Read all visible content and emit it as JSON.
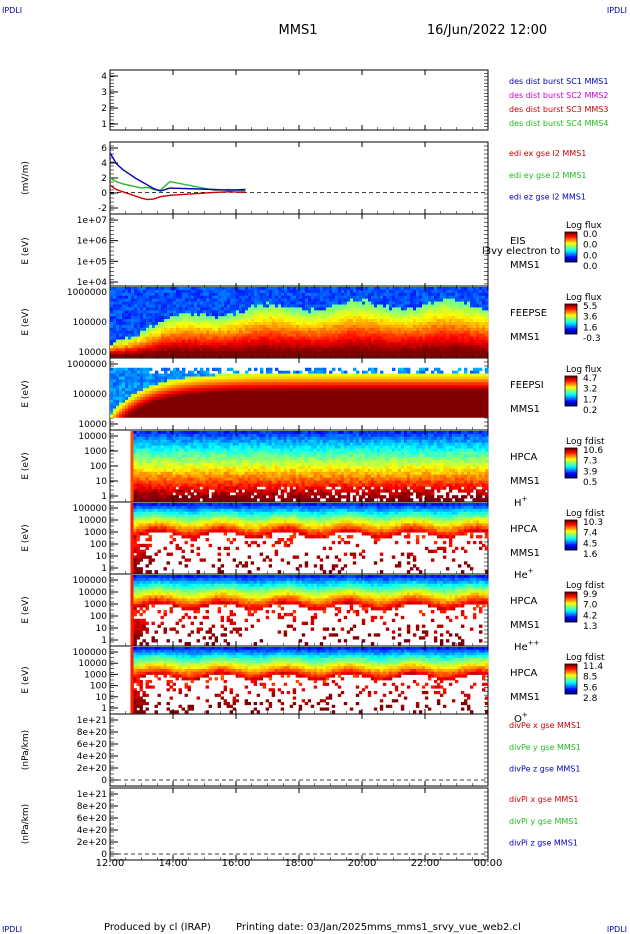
{
  "corner_tag": "IPDLI",
  "header": {
    "mission": "MMS1",
    "datetime": "16/Jun/2022 12:00"
  },
  "footer": {
    "produced_by": "Produced by cl (IRAP)",
    "printing_date": "Printing date: 03/Jan/2025",
    "filename": "mms_mms1_srvy_vue_web2.cl"
  },
  "colors": {
    "red": "#cc0000",
    "green": "#22bb22",
    "blue": "#0000bb",
    "magenta": "#cc00cc"
  },
  "time_axis": {
    "ticks": [
      "12:00",
      "14:00",
      "16:00",
      "18:00",
      "20:00",
      "22:00",
      "00:00"
    ],
    "range_hours": [
      12,
      24
    ]
  },
  "chart_data": [
    {
      "type": "line",
      "panel": "des-dist-burst",
      "ylabel": "",
      "y_ticks": [
        "4",
        "3",
        "2",
        "1"
      ],
      "ylim": [
        0.7,
        4.3
      ],
      "legend": [
        {
          "text": "des dist burst SC1 MMS1",
          "color": "#0000bb"
        },
        {
          "text": "des dist burst SC2 MMS2",
          "color": "#cc00cc"
        },
        {
          "text": "des dist burst SC3 MMS3",
          "color": "#cc0000"
        },
        {
          "text": "des dist burst SC4 MMS4",
          "color": "#22bb22"
        }
      ],
      "series": []
    },
    {
      "type": "line",
      "panel": "edi-e-field",
      "ylabel": "(mV/m)",
      "y_ticks": [
        "6",
        "4",
        "2",
        "0",
        "-2"
      ],
      "ylim": [
        -3,
        7
      ],
      "zero_line": true,
      "legend": [
        {
          "text": "edi ex gse l2 MMS1",
          "color": "#cc0000"
        },
        {
          "text": "edi ey gse l2 MMS1",
          "color": "#22bb22"
        },
        {
          "text": "edi ez gse l2 MMS1",
          "color": "#0000bb"
        }
      ],
      "series": [
        {
          "name": "edi ex gse l2 MMS1",
          "color": "#cc0000",
          "x": [
            12.0,
            12.2,
            12.4,
            12.6,
            12.8,
            13.0,
            13.2,
            13.4,
            13.6,
            13.9,
            15.3,
            15.8,
            16.3
          ],
          "y": [
            1.0,
            0.4,
            0.1,
            -0.2,
            -0.5,
            -0.8,
            -1.0,
            -0.9,
            -0.6,
            -0.4,
            0.0,
            0.1,
            0.0
          ]
        },
        {
          "name": "edi ey gse l2 MMS1",
          "color": "#22bb22",
          "x": [
            12.0,
            12.2,
            12.4,
            12.6,
            12.8,
            13.0,
            13.2,
            13.4,
            13.6,
            13.9,
            15.3,
            15.8,
            16.3
          ],
          "y": [
            2.0,
            1.5,
            1.2,
            1.0,
            0.8,
            0.6,
            0.7,
            0.4,
            0.3,
            1.5,
            0.3,
            0.4,
            0.2
          ]
        },
        {
          "name": "edi ez gse l2 MMS1",
          "color": "#0000bb",
          "x": [
            12.0,
            12.2,
            12.4,
            12.6,
            12.8,
            13.0,
            13.2,
            13.4,
            13.6,
            13.9,
            15.3,
            15.8,
            16.3
          ],
          "y": [
            5.5,
            4.0,
            3.2,
            2.6,
            2.0,
            1.5,
            1.0,
            0.5,
            0.2,
            0.6,
            0.4,
            0.3,
            0.4
          ]
        }
      ]
    },
    {
      "type": "heatmap",
      "panel": "eis",
      "ylabel": "E (eV)",
      "log_y": true,
      "y_ticks": [
        "1e+07",
        "1e+06",
        "1e+05",
        "1e+04"
      ],
      "labels": [
        "EIS",
        "MMS1"
      ],
      "overlay_text": "l3vy electron to",
      "colorbar": {
        "title": "Log flux",
        "ticks": [
          "0.0",
          "0.0",
          "0.0",
          "0.0"
        ]
      },
      "profile": "empty"
    },
    {
      "type": "heatmap",
      "panel": "feeps-e",
      "ylabel": "E (eV)",
      "log_y": true,
      "y_ticks": [
        "1000000",
        "100000",
        "10000"
      ],
      "labels": [
        "FEEPSE",
        "MMS1"
      ],
      "colorbar": {
        "title": "Log flux",
        "ticks": [
          "5.5",
          "3.6",
          "1.6",
          "-0.3"
        ]
      },
      "data_x_range": [
        12.0,
        24.0
      ],
      "profile": "feepse"
    },
    {
      "type": "heatmap",
      "panel": "feeps-i",
      "ylabel": "E (eV)",
      "log_y": true,
      "y_ticks": [
        "1000000",
        "100000",
        "10000"
      ],
      "labels": [
        "FEEPSI",
        "MMS1"
      ],
      "colorbar": {
        "title": "Log flux",
        "ticks": [
          "4.7",
          "3.2",
          "1.7",
          "0.2"
        ]
      },
      "data_x_range": [
        12.0,
        24.0
      ],
      "profile": "feepsi"
    },
    {
      "type": "heatmap",
      "panel": "hpca-h",
      "ylabel": "E (eV)",
      "log_y": true,
      "y_ticks": [
        "10000",
        "1000",
        "100",
        "10",
        "1"
      ],
      "labels": [
        "HPCA",
        "MMS1"
      ],
      "species": {
        "base": "H",
        "sup": "+"
      },
      "colorbar": {
        "title": "Log fdist",
        "ticks": [
          "10.6",
          "7.3",
          "3.9",
          "0.5"
        ]
      },
      "data_x_range": [
        12.65,
        24.0
      ],
      "profile": "hpca_h"
    },
    {
      "type": "heatmap",
      "panel": "hpca-he",
      "ylabel": "E (eV)",
      "log_y": true,
      "y_ticks": [
        "100000",
        "10000",
        "1000",
        "100",
        "10",
        "1"
      ],
      "labels": [
        "HPCA",
        "MMS1"
      ],
      "species": {
        "base": "He",
        "sup": "+"
      },
      "colorbar": {
        "title": "Log fdist",
        "ticks": [
          "10.3",
          "7.4",
          "4.5",
          "1.6"
        ]
      },
      "data_x_range": [
        12.65,
        24.0
      ],
      "profile": "hpca_he"
    },
    {
      "type": "heatmap",
      "panel": "hpca-he2",
      "ylabel": "E (eV)",
      "log_y": true,
      "y_ticks": [
        "100000",
        "10000",
        "1000",
        "100",
        "10",
        "1"
      ],
      "labels": [
        "HPCA",
        "MMS1"
      ],
      "species": {
        "base": "He",
        "sup": "++"
      },
      "colorbar": {
        "title": "Log fdist",
        "ticks": [
          "9.9",
          "7.0",
          "4.2",
          "1.3"
        ]
      },
      "data_x_range": [
        12.65,
        24.0
      ],
      "profile": "hpca_he2"
    },
    {
      "type": "heatmap",
      "panel": "hpca-o",
      "ylabel": "E (eV)",
      "log_y": true,
      "y_ticks": [
        "100000",
        "10000",
        "1000",
        "100",
        "10",
        "1"
      ],
      "labels": [
        "HPCA",
        "MMS1"
      ],
      "species": {
        "base": "O",
        "sup": "+"
      },
      "colorbar": {
        "title": "Log fdist",
        "ticks": [
          "11.4",
          "8.5",
          "5.6",
          "2.8"
        ]
      },
      "data_x_range": [
        12.65,
        24.0
      ],
      "profile": "hpca_o"
    },
    {
      "type": "line",
      "panel": "div-pe",
      "ylabel": "(nPa/km)",
      "y_ticks": [
        "1e+21",
        "8e+20",
        "6e+20",
        "4e+20",
        "2e+20",
        "0"
      ],
      "ylim": [
        -1e+20,
        1.1e+21
      ],
      "zero_line": true,
      "legend": [
        {
          "text": "divPe x gse MMS1",
          "color": "#cc0000"
        },
        {
          "text": "divPe y gse MMS1",
          "color": "#22bb22"
        },
        {
          "text": "divPe z gse MMS1",
          "color": "#0000bb"
        }
      ],
      "series": []
    },
    {
      "type": "line",
      "panel": "div-pi",
      "ylabel": "(nPa/km)",
      "y_ticks": [
        "1e+21",
        "8e+20",
        "6e+20",
        "4e+20",
        "2e+20",
        "0"
      ],
      "ylim": [
        -1e+20,
        1.1e+21
      ],
      "zero_line": true,
      "legend": [
        {
          "text": "divPi x gse MMS1",
          "color": "#cc0000"
        },
        {
          "text": "divPi y gse MMS1",
          "color": "#22bb22"
        },
        {
          "text": "divPi z gse MMS1",
          "color": "#0000bb"
        }
      ],
      "series": []
    }
  ]
}
